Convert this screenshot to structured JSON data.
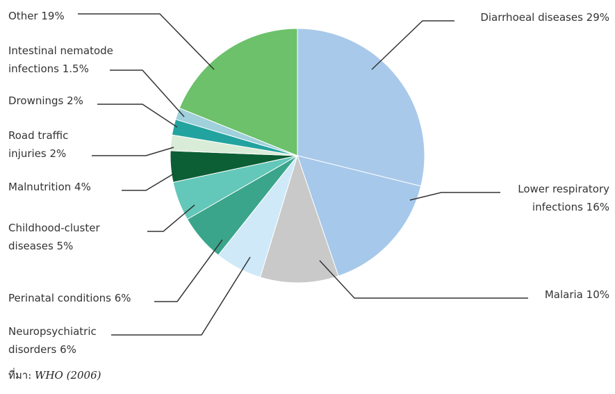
{
  "chart_data": {
    "type": "pie",
    "title": "",
    "start_angle_deg": 0,
    "direction": "clockwise",
    "slices": [
      {
        "label_lines": [
          "Diarrhoeal diseases 29%"
        ],
        "value": 29,
        "color": "#a9c9ea"
      },
      {
        "label_lines": [
          "Lower respiratory",
          "infections 16%"
        ],
        "value": 16,
        "color": "#a6c8ea"
      },
      {
        "label_lines": [
          "Malaria 10%"
        ],
        "value": 10,
        "color": "#c9c9c9"
      },
      {
        "label_lines": [
          "Neuropsychiatric",
          "disorders 6%"
        ],
        "value": 6,
        "color": "#cfe9f8"
      },
      {
        "label_lines": [
          "Perinatal conditions 6%"
        ],
        "value": 6,
        "color": "#3aa58a"
      },
      {
        "label_lines": [
          "Childhood-cluster",
          "diseases 5%"
        ],
        "value": 5,
        "color": "#63c7b9"
      },
      {
        "label_lines": [
          "Malnutrition 4%"
        ],
        "value": 4,
        "color": "#0c5f35"
      },
      {
        "label_lines": [
          "Road traffic",
          "injuries 2%"
        ],
        "value": 2,
        "color": "#d9ecd8"
      },
      {
        "label_lines": [
          "Drownings 2%"
        ],
        "value": 2,
        "color": "#23a39f"
      },
      {
        "label_lines": [
          "Intestinal nematode",
          "infections 1.5%"
        ],
        "value": 1.5,
        "color": "#9fd0dc"
      },
      {
        "label_lines": [
          "Other 19%"
        ],
        "value": 19,
        "color": "#6cc16a"
      }
    ]
  },
  "source": {
    "label": "ที่มา:",
    "text": "WHO (2006)"
  }
}
